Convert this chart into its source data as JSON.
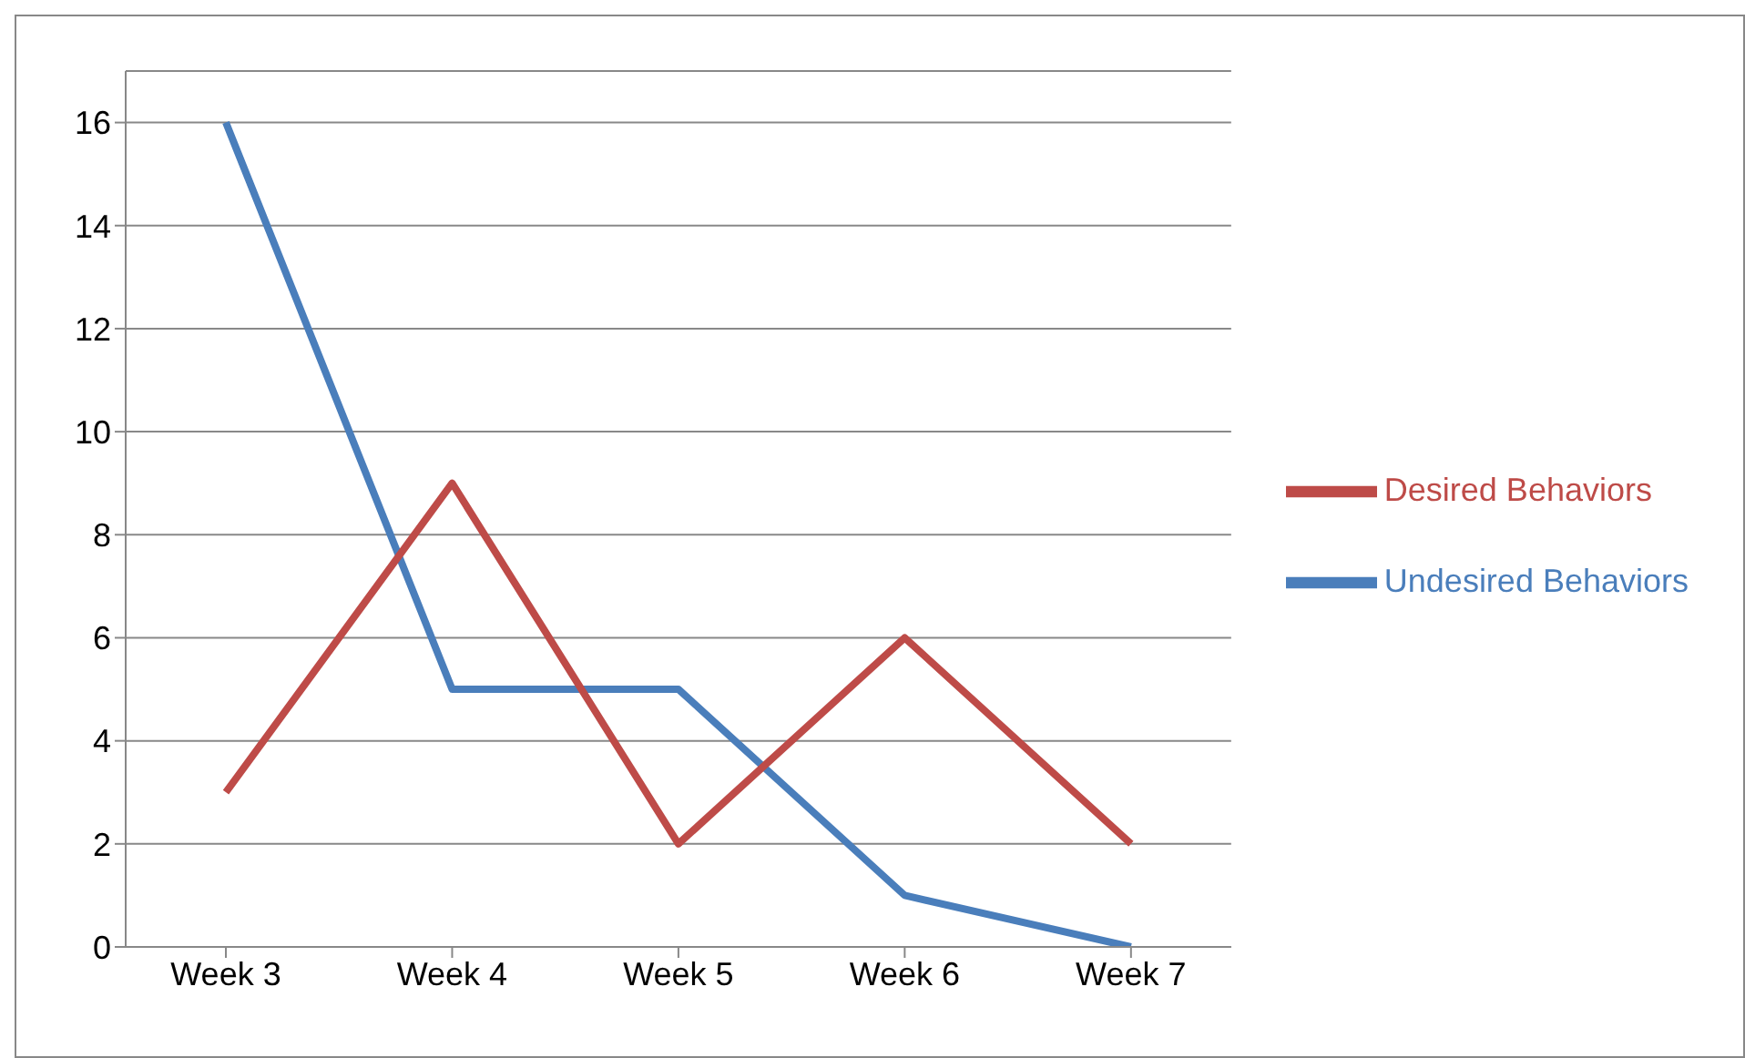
{
  "chart_data": {
    "type": "line",
    "categories": [
      "Week 3",
      "Week 4",
      "Week 5",
      "Week 6",
      "Week 7"
    ],
    "series": [
      {
        "name": "Undesired Behaviors",
        "color": "#4a7ebb",
        "values": [
          16,
          5,
          5,
          1,
          0
        ]
      },
      {
        "name": "Desired Behaviors",
        "color": "#be4b48",
        "values": [
          3,
          9,
          2,
          6,
          2
        ]
      }
    ],
    "ylim": [
      0,
      17
    ],
    "yticks": [
      0,
      2,
      4,
      6,
      8,
      10,
      12,
      14,
      16
    ],
    "grid": "y",
    "legend": "right",
    "marker": "none",
    "line_style": "solid"
  }
}
